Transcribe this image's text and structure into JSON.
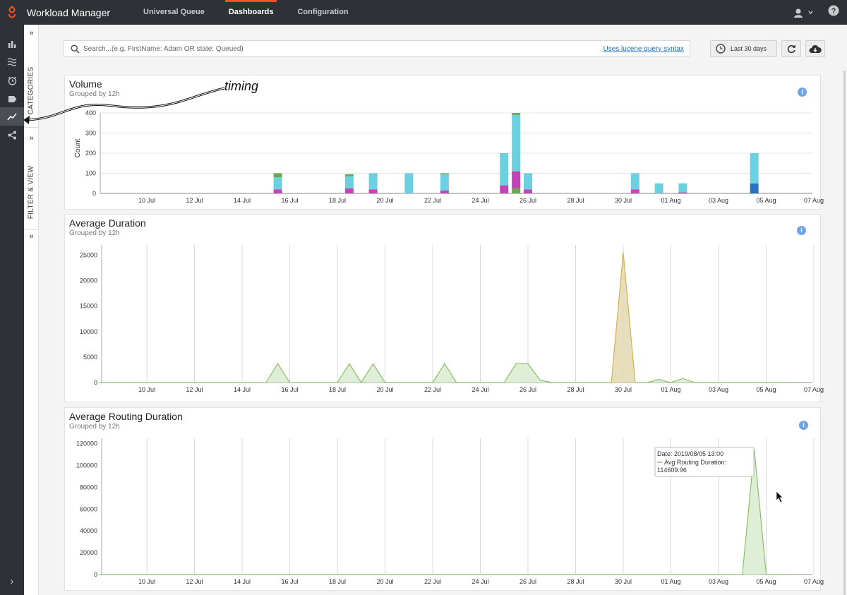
{
  "header": {
    "app_title": "Workload Manager",
    "tabs": [
      {
        "label": "Universal Queue",
        "active": false
      },
      {
        "label": "Dashboards",
        "active": true
      },
      {
        "label": "Configuration",
        "active": false
      }
    ],
    "help_label": "?"
  },
  "leftnav": {
    "icons": [
      "bar-chart-icon",
      "stack-layers-icon",
      "alarm-clock-icon",
      "tag-icon",
      "trend-line-icon",
      "share-icon"
    ],
    "active_index": 4,
    "expand_label": "›"
  },
  "side_panel": {
    "categories_label": "CATEGORIES",
    "filter_label": "FILTER & VIEW",
    "chevron": "»"
  },
  "search": {
    "placeholder": "Search...(e.g. FirstName: Adam OR state: Queued)",
    "value": "",
    "lucene_link": "Uses lucene query syntax"
  },
  "toolbar": {
    "range_label": "Last 30 days"
  },
  "annotation": {
    "text": "timing"
  },
  "accent": "#ff4f1f",
  "chart_data": [
    {
      "type": "bar",
      "title": "Volume",
      "subtitle": "Grouped by 12h",
      "ylabel": "Count",
      "ylim": [
        0,
        400
      ],
      "yticks": [
        0,
        100,
        200,
        300,
        400
      ],
      "x_labels": [
        "10 Jul",
        "12 Jul",
        "14 Jul",
        "16 Jul",
        "18 Jul",
        "20 Jul",
        "22 Jul",
        "24 Jul",
        "26 Jul",
        "28 Jul",
        "30 Jul",
        "01 Aug",
        "03 Aug",
        "05 Aug",
        "07 Aug"
      ],
      "series_colors": {
        "cyan": "#6bd0e0",
        "magenta": "#c643b5",
        "green": "#6aa84f",
        "blue": "#2a73c0"
      },
      "bars": [
        {
          "day": 15.5,
          "segments": [
            {
              "c": "magenta",
              "v": 20
            },
            {
              "c": "cyan",
              "v": 60
            },
            {
              "c": "green",
              "v": 20
            }
          ]
        },
        {
          "day": 18.5,
          "segments": [
            {
              "c": "magenta",
              "v": 25
            },
            {
              "c": "cyan",
              "v": 60
            },
            {
              "c": "green",
              "v": 10
            }
          ]
        },
        {
          "day": 19.5,
          "segments": [
            {
              "c": "magenta",
              "v": 20
            },
            {
              "c": "cyan",
              "v": 80
            }
          ]
        },
        {
          "day": 21.0,
          "segments": [
            {
              "c": "cyan",
              "v": 100
            }
          ]
        },
        {
          "day": 22.5,
          "segments": [
            {
              "c": "magenta",
              "v": 15
            },
            {
              "c": "cyan",
              "v": 80
            },
            {
              "c": "green",
              "v": 5
            }
          ]
        },
        {
          "day": 25.0,
          "segments": [
            {
              "c": "magenta",
              "v": 40
            },
            {
              "c": "cyan",
              "v": 160
            }
          ]
        },
        {
          "day": 25.5,
          "segments": [
            {
              "c": "green",
              "v": 25
            },
            {
              "c": "magenta",
              "v": 85
            },
            {
              "c": "cyan",
              "v": 280
            },
            {
              "c": "green",
              "v": 10
            }
          ]
        },
        {
          "day": 26.0,
          "segments": [
            {
              "c": "magenta",
              "v": 20
            },
            {
              "c": "cyan",
              "v": 80
            }
          ]
        },
        {
          "day": 30.5,
          "segments": [
            {
              "c": "magenta",
              "v": 20
            },
            {
              "c": "cyan",
              "v": 80
            }
          ]
        },
        {
          "day": 31.5,
          "segments": [
            {
              "c": "cyan",
              "v": 50
            }
          ]
        },
        {
          "day": 32.5,
          "segments": [
            {
              "c": "magenta",
              "v": 5
            },
            {
              "c": "cyan",
              "v": 45
            }
          ]
        },
        {
          "day": 35.5,
          "segments": [
            {
              "c": "blue",
              "v": 50
            },
            {
              "c": "cyan",
              "v": 150
            }
          ]
        }
      ]
    },
    {
      "type": "area",
      "title": "Average Duration",
      "subtitle": "Grouped by 12h",
      "ylim": [
        0,
        27000
      ],
      "yticks": [
        0,
        5000,
        10000,
        15000,
        20000,
        25000
      ],
      "x_labels": [
        "10 Jul",
        "12 Jul",
        "14 Jul",
        "16 Jul",
        "18 Jul",
        "20 Jul",
        "22 Jul",
        "24 Jul",
        "26 Jul",
        "28 Jul",
        "30 Jul",
        "01 Aug",
        "03 Aug",
        "05 Aug",
        "07 Aug"
      ],
      "series": [
        {
          "color": "#8dbf6a",
          "fill": "#d9ebcf",
          "points": [
            [
              8,
              0
            ],
            [
              15,
              0
            ],
            [
              15.5,
              3700
            ],
            [
              16,
              0
            ],
            [
              18,
              0
            ],
            [
              18.5,
              3700
            ],
            [
              19,
              0
            ],
            [
              19.5,
              3700
            ],
            [
              20,
              0
            ],
            [
              22,
              0
            ],
            [
              22.5,
              3700
            ],
            [
              23,
              0
            ],
            [
              25,
              0
            ],
            [
              25.5,
              3700
            ],
            [
              26,
              3700
            ],
            [
              26.5,
              500
            ],
            [
              27,
              0
            ],
            [
              31,
              0
            ],
            [
              31.5,
              600
            ],
            [
              32,
              0
            ],
            [
              32.5,
              800
            ],
            [
              33,
              0
            ],
            [
              37,
              0
            ]
          ]
        },
        {
          "color": "#d4b24a",
          "fill": "#e3d8b2",
          "points": [
            [
              29.5,
              0
            ],
            [
              30,
              25500
            ],
            [
              30.5,
              0
            ]
          ]
        }
      ]
    },
    {
      "type": "area",
      "title": "Average Routing Duration",
      "subtitle": "Grouped by 12h",
      "ylim": [
        0,
        125000
      ],
      "yticks": [
        0,
        20000,
        40000,
        60000,
        80000,
        100000,
        120000
      ],
      "x_labels": [
        "10 Jul",
        "12 Jul",
        "14 Jul",
        "16 Jul",
        "18 Jul",
        "20 Jul",
        "22 Jul",
        "24 Jul",
        "26 Jul",
        "28 Jul",
        "30 Jul",
        "01 Aug",
        "03 Aug",
        "05 Aug",
        "07 Aug"
      ],
      "series": [
        {
          "color": "#8dbf6a",
          "fill": "#d9ebcf",
          "points": [
            [
              8,
              0
            ],
            [
              35,
              0
            ],
            [
              35.5,
              114609.96
            ],
            [
              36,
              0
            ],
            [
              37,
              0
            ]
          ]
        }
      ],
      "tooltip": {
        "date_line": "Date: 2019/08/05 13:00",
        "series_line": "Avg Routing Duration:",
        "value_line": "114609.96"
      }
    }
  ]
}
